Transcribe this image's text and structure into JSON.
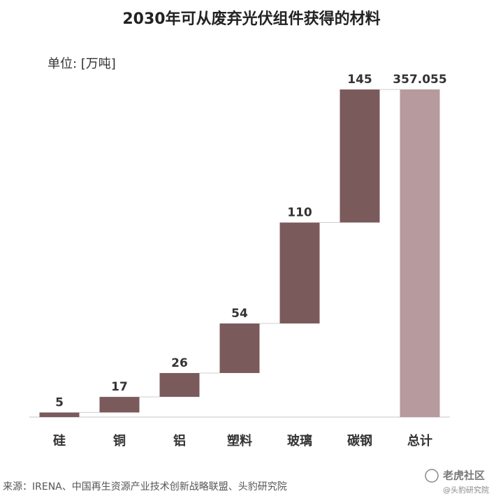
{
  "chart_data": {
    "type": "waterfall",
    "title": "2030年可从废弃光伏组件获得的材料",
    "unit": "单位: [万吨]",
    "categories": [
      "硅",
      "铜",
      "铝",
      "塑料",
      "玻璃",
      "碳钢",
      "总计"
    ],
    "values": [
      5,
      17,
      26,
      54,
      110,
      145,
      357.055
    ],
    "last_is_total": true,
    "colors": {
      "step": "#7b5a5b",
      "total": "#b79a9d"
    },
    "source": "来源：IRENA、中国再生资源产业技术创新战略联盟、头豹研究院",
    "watermark": [
      "老虎社区",
      "@头豹研究院"
    ]
  }
}
